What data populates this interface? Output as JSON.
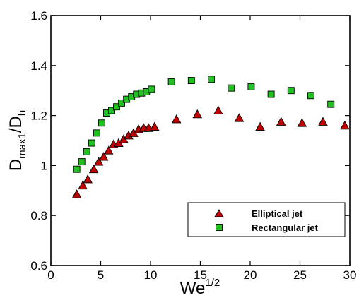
{
  "chart_data": {
    "type": "scatter",
    "xlabel": {
      "base": "We",
      "sup": "1/2"
    },
    "ylabel": {
      "base": "D",
      "sub1": "max1",
      "mid": "/D",
      "sub2": "h"
    },
    "xlim": [
      0,
      30
    ],
    "ylim": [
      0.6,
      1.6
    ],
    "xticks": [
      0,
      5,
      10,
      15,
      20,
      25,
      30
    ],
    "yticks": [
      0.6,
      0.8,
      1,
      1.2,
      1.4,
      1.6
    ],
    "x_tick_labels": [
      "0",
      "5",
      "10",
      "15",
      "20",
      "25",
      "30"
    ],
    "y_tick_labels": [
      "0.6",
      "0.8",
      "1",
      "1.2",
      "1.4",
      "1.6"
    ],
    "grid": false,
    "legend_position": "bottom-right",
    "series": [
      {
        "name": "Elliptical jet",
        "marker": "triangle",
        "color": "#c00000",
        "x": [
          2.6,
          3.2,
          3.7,
          4.3,
          4.8,
          5.3,
          5.8,
          6.3,
          6.8,
          7.3,
          7.8,
          8.3,
          8.8,
          9.3,
          9.8,
          10.4,
          12.6,
          14.7,
          16.8,
          18.9,
          21.0,
          23.1,
          25.2,
          27.3,
          29.5
        ],
        "y": [
          0.885,
          0.92,
          0.945,
          0.985,
          1.015,
          1.035,
          1.06,
          1.085,
          1.09,
          1.105,
          1.12,
          1.13,
          1.145,
          1.15,
          1.15,
          1.155,
          1.185,
          1.205,
          1.22,
          1.19,
          1.155,
          1.175,
          1.17,
          1.175,
          1.16
        ]
      },
      {
        "name": "Rectangular jet",
        "marker": "square",
        "color": "#22c022",
        "x": [
          2.6,
          3.1,
          3.6,
          4.1,
          4.6,
          5.1,
          5.6,
          6.1,
          6.6,
          7.1,
          7.6,
          8.1,
          8.6,
          9.1,
          9.6,
          10.1,
          12.1,
          14.1,
          16.1,
          18.1,
          20.1,
          22.1,
          24.1,
          26.1,
          28.1
        ],
        "y": [
          0.985,
          1.015,
          1.055,
          1.09,
          1.13,
          1.17,
          1.21,
          1.22,
          1.235,
          1.25,
          1.265,
          1.275,
          1.285,
          1.29,
          1.295,
          1.305,
          1.335,
          1.34,
          1.345,
          1.31,
          1.315,
          1.285,
          1.3,
          1.28,
          1.245
        ]
      }
    ]
  }
}
